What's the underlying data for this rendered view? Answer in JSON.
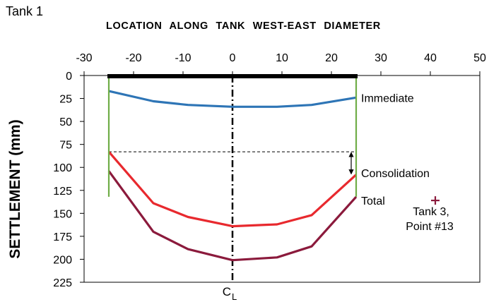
{
  "tank_label": "Tank 1",
  "chart_data": {
    "type": "line",
    "title": "LOCATION ALONG TANK WEST-EAST DIAMETER",
    "xlabel": "LOCATION ALONG TANK WEST-EAST DIAMETER",
    "ylabel": "SETTLEMENT (mm)",
    "xlim": [
      -30,
      50
    ],
    "ylim": [
      0,
      225
    ],
    "y_inverted": true,
    "x_axis_position": "top",
    "x_ticks": [
      -30,
      -20,
      -10,
      0,
      10,
      20,
      30,
      40,
      50
    ],
    "y_ticks": [
      0,
      25,
      50,
      75,
      100,
      125,
      150,
      175,
      200,
      225
    ],
    "grid": false,
    "series": [
      {
        "name": "Immediate",
        "color": "#2e75b6",
        "x": [
          -25,
          -16,
          -9,
          0,
          9,
          16,
          25
        ],
        "y": [
          17,
          28,
          32,
          34,
          34,
          32,
          24
        ]
      },
      {
        "name": "Consolidation",
        "color": "#e8292e",
        "x": [
          -25,
          -16,
          -9,
          0,
          9,
          16,
          25
        ],
        "y": [
          83,
          139,
          154,
          164,
          162,
          152,
          108
        ]
      },
      {
        "name": "Total",
        "color": "#8b1a3c",
        "x": [
          -25,
          -16,
          -9,
          0,
          9,
          16,
          25
        ],
        "y": [
          104,
          170,
          189,
          201,
          198,
          186,
          132
        ]
      }
    ],
    "tank_walls": {
      "color": "#70ad47",
      "x": [
        -25,
        25
      ],
      "y_range": [
        0,
        132
      ]
    },
    "tank_base": {
      "x": [
        -25,
        25
      ],
      "y": 0
    },
    "centerline": {
      "x": 0,
      "label_main": "C",
      "label_sub": "L"
    },
    "consolidation_reference": {
      "y": 83,
      "x_range": [
        -25,
        25
      ],
      "arrow_x": 24,
      "arrow_range": [
        83,
        108
      ]
    },
    "point": {
      "x": 41,
      "y": 136,
      "color": "#8b1a3c",
      "label_line1": "Tank 3,",
      "label_line2": "Point #13"
    }
  }
}
